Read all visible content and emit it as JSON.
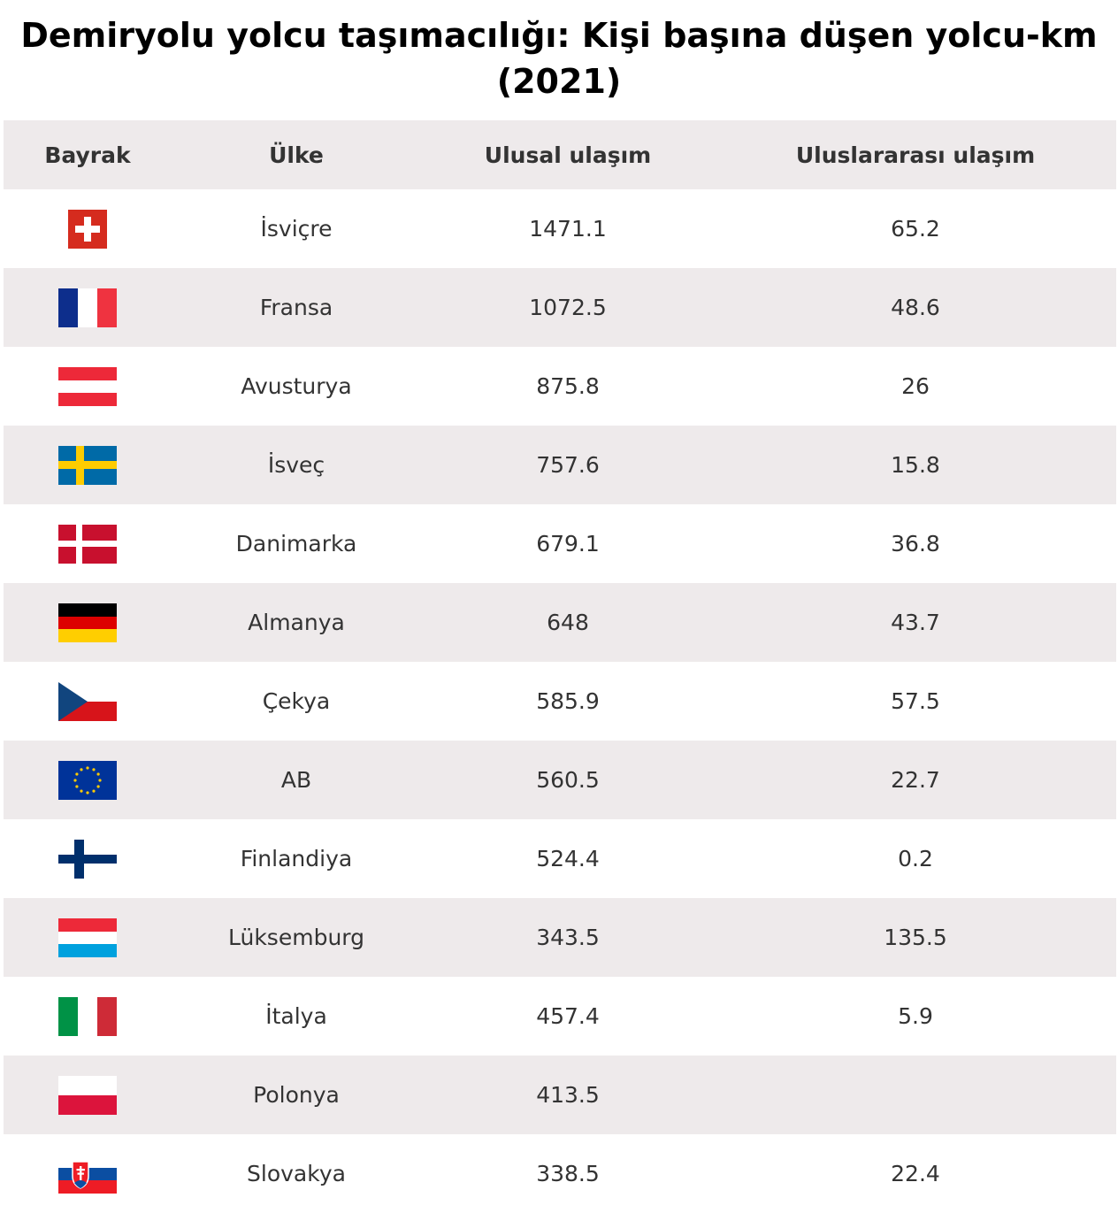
{
  "title": "Demiryolu yolcu taşımacılığı: Kişi başına düşen yolcu-km (2021)",
  "columns": {
    "flag": "Bayrak",
    "country": "Ülke",
    "national": "Ulusal ulaşım",
    "international": "Uluslararası ulaşım"
  },
  "rows": [
    {
      "flag_icon": "switzerland-flag-icon",
      "country": "İsviçre",
      "national": "1471.1",
      "international": "65.2"
    },
    {
      "flag_icon": "france-flag-icon",
      "country": "Fransa",
      "national": "1072.5",
      "international": "48.6"
    },
    {
      "flag_icon": "austria-flag-icon",
      "country": "Avusturya",
      "national": "875.8",
      "international": "26"
    },
    {
      "flag_icon": "sweden-flag-icon",
      "country": "İsveç",
      "national": "757.6",
      "international": "15.8"
    },
    {
      "flag_icon": "denmark-flag-icon",
      "country": "Danimarka",
      "national": "679.1",
      "international": "36.8"
    },
    {
      "flag_icon": "germany-flag-icon",
      "country": "Almanya",
      "national": "648",
      "international": "43.7"
    },
    {
      "flag_icon": "czechia-flag-icon",
      "country": "Çekya",
      "national": "585.9",
      "international": "57.5"
    },
    {
      "flag_icon": "eu-flag-icon",
      "country": "AB",
      "national": "560.5",
      "international": "22.7"
    },
    {
      "flag_icon": "finland-flag-icon",
      "country": "Finlandiya",
      "national": "524.4",
      "international": "0.2"
    },
    {
      "flag_icon": "luxembourg-flag-icon",
      "country": "Lüksemburg",
      "national": "343.5",
      "international": "135.5"
    },
    {
      "flag_icon": "italy-flag-icon",
      "country": "İtalya",
      "national": "457.4",
      "international": "5.9"
    },
    {
      "flag_icon": "poland-flag-icon",
      "country": "Polonya",
      "national": "413.5",
      "international": ""
    },
    {
      "flag_icon": "slovakia-flag-icon",
      "country": "Slovakya",
      "national": "338.5",
      "international": "22.4"
    }
  ],
  "colors": {
    "header_bg": "#eeeaeb",
    "alt_row_bg": "#eeeaeb",
    "text": "#333333",
    "title": "#000000"
  }
}
